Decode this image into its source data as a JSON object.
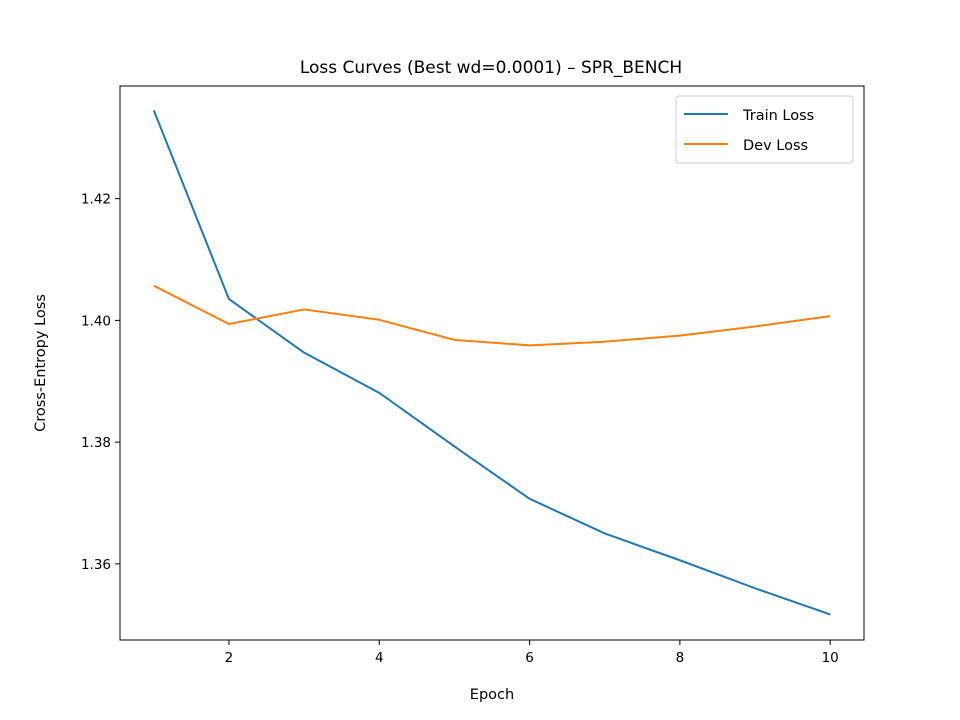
{
  "chart_data": {
    "type": "line",
    "title": "Loss Curves (Best wd=0.0001) – SPR_BENCH",
    "xlabel": "Epoch",
    "ylabel": "Cross-Entropy Loss",
    "x": [
      1,
      2,
      3,
      4,
      5,
      6,
      7,
      8,
      9,
      10
    ],
    "xlim": [
      0.55,
      10.45
    ],
    "ylim": [
      1.3475,
      1.4385
    ],
    "xticks": [
      2,
      4,
      6,
      8,
      10
    ],
    "yticks": [
      1.36,
      1.38,
      1.4,
      1.42
    ],
    "grid": false,
    "legend": "top-right",
    "series": [
      {
        "name": "Train Loss",
        "color": "#1f77b4",
        "values": [
          1.4345,
          1.4035,
          1.3947,
          1.3881,
          1.3793,
          1.3707,
          1.365,
          1.3606,
          1.356,
          1.3517
        ]
      },
      {
        "name": "Dev Loss",
        "color": "#ff7f0e",
        "values": [
          1.4057,
          1.3994,
          1.4018,
          1.4001,
          1.3968,
          1.3959,
          1.3965,
          1.3975,
          1.399,
          1.4007
        ]
      }
    ]
  }
}
